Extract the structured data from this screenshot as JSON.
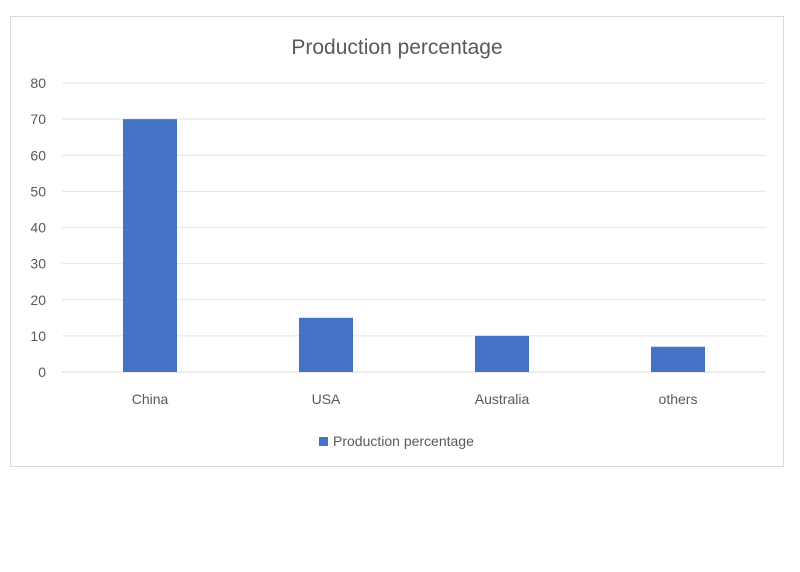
{
  "chart_data": {
    "type": "bar",
    "title": "Production percentage",
    "categories": [
      "China",
      "USA",
      "Australia",
      "others"
    ],
    "series": [
      {
        "name": "Production percentage",
        "values": [
          70,
          15,
          10,
          7
        ]
      }
    ],
    "ylim": [
      0,
      80
    ],
    "yticks": [
      0,
      10,
      20,
      30,
      40,
      50,
      60,
      70,
      80
    ],
    "grid": true,
    "legend": "bottom-center",
    "colors": {
      "bar": "#4472c4",
      "grid": "#e4e4e4",
      "axis": "#d9d9d9",
      "text": "#595959"
    }
  }
}
